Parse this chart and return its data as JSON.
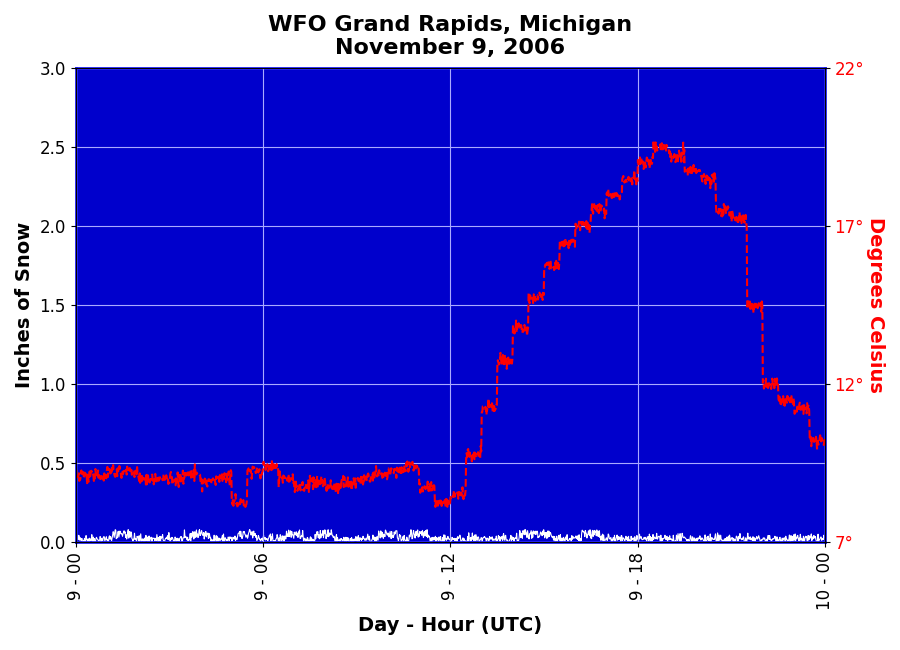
{
  "title_line1": "WFO Grand Rapids, Michigan",
  "title_line2": "November 9, 2006",
  "xlabel": "Day - Hour (UTC)",
  "ylabel_left": "Inches of Snow",
  "ylabel_right": "Degrees Celsius",
  "bg_color": "#0000cc",
  "fig_bg_color": "#ffffff",
  "border_color": "#2222ff",
  "ylim_left": [
    0.0,
    3.0
  ],
  "ylim_right": [
    7,
    22
  ],
  "yticks_left": [
    0.0,
    0.5,
    1.0,
    1.5,
    2.0,
    2.5,
    3.0
  ],
  "yticks_right": [
    7,
    12,
    17,
    22
  ],
  "xtick_labels": [
    "9 - 00",
    "9 - 06",
    "9 - 12",
    "9 - 18",
    "10 - 00"
  ],
  "grid_color": "#aaaaff",
  "snow_color": "#ffffff",
  "temp_color": "#ff0000",
  "title_fontsize": 16,
  "axis_label_fontsize": 14,
  "tick_fontsize": 12
}
